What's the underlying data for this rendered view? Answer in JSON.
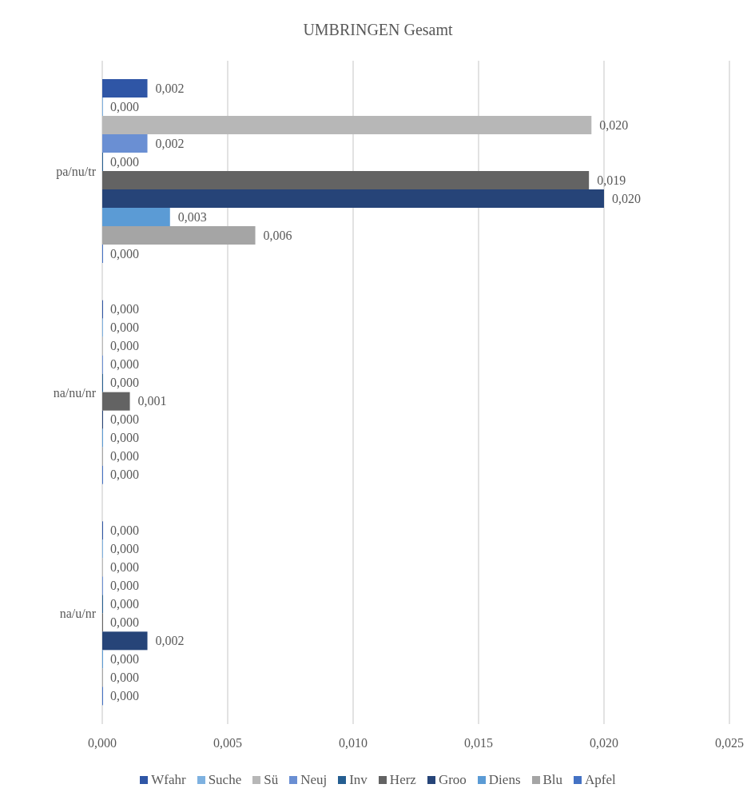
{
  "chart_data": {
    "type": "bar",
    "orientation": "horizontal",
    "title": "UMBRINGEN Gesamt",
    "categories": [
      "pa/nu/tr",
      "na/nu/nr",
      "na/u/nr"
    ],
    "series": [
      {
        "name": "Wfahr",
        "color": "#2f56a6",
        "values": [
          0.0018,
          0,
          0
        ],
        "value_labels": [
          "0,002",
          "0,000",
          "0,000"
        ]
      },
      {
        "name": "Suche",
        "color": "#7eb1e0",
        "values": [
          0,
          0,
          0
        ],
        "value_labels": [
          "0,000",
          "0,000",
          "0,000"
        ]
      },
      {
        "name": "Sü",
        "color": "#b7b7b7",
        "values": [
          0.0195,
          0,
          0
        ],
        "value_labels": [
          "0,020",
          "0,000",
          "0,000"
        ]
      },
      {
        "name": "Neuj",
        "color": "#6a8fd3",
        "values": [
          0.0018,
          0,
          0
        ],
        "value_labels": [
          "0,002",
          "0,000",
          "0,000"
        ]
      },
      {
        "name": "Inv",
        "color": "#255e91",
        "values": [
          0,
          0,
          0
        ],
        "value_labels": [
          "0,000",
          "0,000",
          "0,000"
        ]
      },
      {
        "name": "Herz",
        "color": "#636363",
        "values": [
          0.0194,
          0.0011,
          0
        ],
        "value_labels": [
          "0,019",
          "0,001",
          "0,000"
        ]
      },
      {
        "name": "Groo",
        "color": "#264478",
        "values": [
          0.02,
          0,
          0.0018
        ],
        "value_labels": [
          "0,020",
          "0,000",
          "0,002"
        ]
      },
      {
        "name": "Diens",
        "color": "#5b9bd5",
        "values": [
          0.0027,
          0,
          0
        ],
        "value_labels": [
          "0,003",
          "0,000",
          "0,000"
        ]
      },
      {
        "name": "Blu",
        "color": "#a5a5a5",
        "values": [
          0.0061,
          0,
          0
        ],
        "value_labels": [
          "0,006",
          "0,000",
          "0,000"
        ]
      },
      {
        "name": "Apfel",
        "color": "#4472c4",
        "values": [
          0,
          0,
          0
        ],
        "value_labels": [
          "0,000",
          "0,000",
          "0,000"
        ]
      }
    ],
    "xlim": [
      0,
      0.025
    ],
    "xticks": [
      {
        "value": 0,
        "label": "0,000"
      },
      {
        "value": 0.005,
        "label": "0,005"
      },
      {
        "value": 0.01,
        "label": "0,010"
      },
      {
        "value": 0.015,
        "label": "0,015"
      },
      {
        "value": 0.02,
        "label": "0,020"
      },
      {
        "value": 0.025,
        "label": "0,025"
      }
    ],
    "grid": "x",
    "legend": "bottom"
  }
}
